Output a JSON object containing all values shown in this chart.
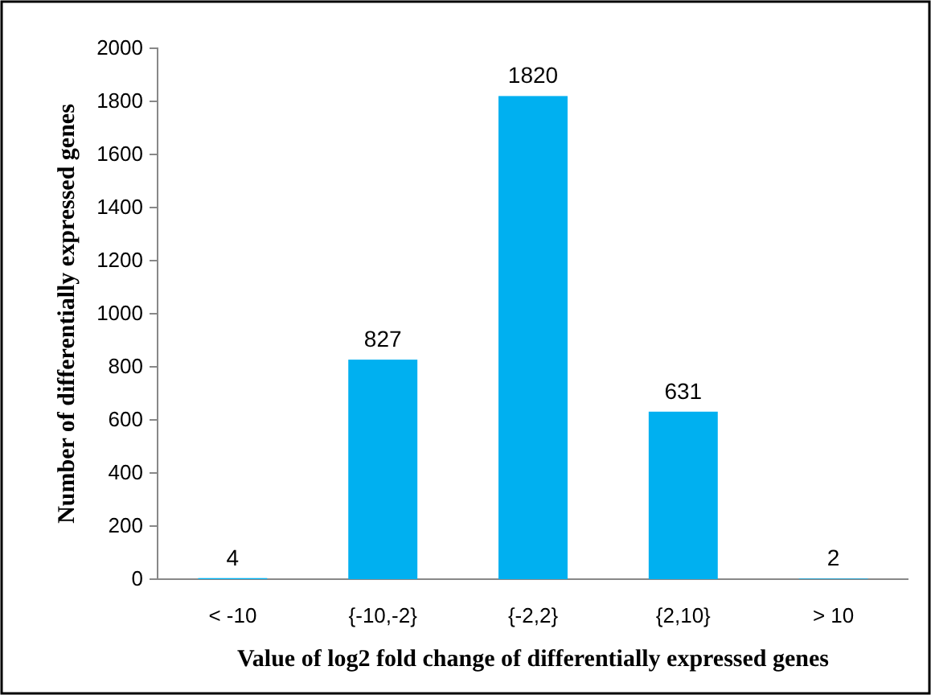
{
  "chart_data": {
    "type": "bar",
    "xlabel": "Value of log2 fold change of differentially expressed genes",
    "ylabel": "Number of differentially expressed genes",
    "categories": [
      "< -10",
      "{-10,-2}",
      "{-2,2}",
      "{2,10}",
      "> 10"
    ],
    "values": [
      4,
      827,
      1820,
      631,
      2
    ],
    "color": "#00b0f0",
    "ylim": [
      0,
      2000
    ],
    "yticks": [
      0,
      200,
      400,
      600,
      800,
      1000,
      1200,
      1400,
      1600,
      1800,
      2000
    ],
    "grid": false,
    "data_labels": true
  }
}
